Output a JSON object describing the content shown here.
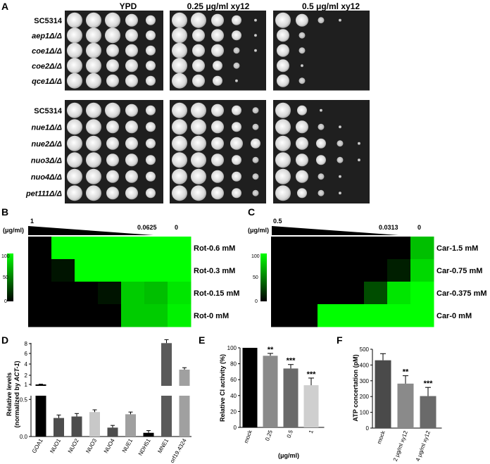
{
  "panel_letters": {
    "a": "A",
    "b": "B",
    "c": "C",
    "d": "D",
    "e": "E",
    "f": "F"
  },
  "panel_a": {
    "col_headers": [
      "YPD",
      "0.25 μg/ml  xy12",
      "0.5 μg/ml  xy12"
    ],
    "group1_strains": [
      "SC5314",
      "aep1Δ/Δ",
      "coe1Δ/Δ",
      "coe2Δ/Δ",
      "qce1Δ/Δ"
    ],
    "group2_strains": [
      "SC5314",
      "nue1Δ/Δ",
      "nue2Δ/Δ",
      "nuo3Δ/Δ",
      "nuo4Δ/Δ",
      "pet111Δ/Δ"
    ],
    "growth_group1": [
      [
        [
          5,
          5,
          5,
          4,
          3
        ],
        [
          5,
          5,
          4,
          3,
          1
        ],
        [
          5,
          4,
          2,
          1,
          0
        ]
      ],
      [
        [
          5,
          5,
          5,
          4,
          3
        ],
        [
          5,
          4,
          4,
          3,
          1
        ],
        [
          4,
          2,
          0,
          0,
          0
        ]
      ],
      [
        [
          5,
          5,
          4,
          4,
          3
        ],
        [
          5,
          4,
          4,
          2,
          1
        ],
        [
          4,
          2,
          0,
          0,
          0
        ]
      ],
      [
        [
          5,
          5,
          4,
          4,
          3
        ],
        [
          5,
          4,
          3,
          2,
          0
        ],
        [
          4,
          1,
          0,
          0,
          0
        ]
      ],
      [
        [
          5,
          5,
          4,
          4,
          3
        ],
        [
          5,
          4,
          3,
          1,
          0
        ],
        [
          4,
          2,
          0,
          0,
          0
        ]
      ]
    ],
    "growth_group2": [
      [
        [
          5,
          5,
          5,
          4,
          3
        ],
        [
          5,
          5,
          4,
          3,
          2
        ],
        [
          5,
          3,
          1,
          0,
          0
        ]
      ],
      [
        [
          5,
          5,
          4,
          4,
          3
        ],
        [
          5,
          5,
          4,
          3,
          2
        ],
        [
          5,
          4,
          2,
          1,
          0
        ]
      ],
      [
        [
          5,
          5,
          4,
          4,
          3
        ],
        [
          5,
          5,
          4,
          4,
          3
        ],
        [
          5,
          4,
          3,
          2,
          1
        ]
      ],
      [
        [
          5,
          5,
          4,
          4,
          3
        ],
        [
          5,
          5,
          4,
          3,
          2
        ],
        [
          5,
          4,
          3,
          2,
          1
        ]
      ],
      [
        [
          5,
          5,
          4,
          4,
          3
        ],
        [
          5,
          5,
          4,
          3,
          2
        ],
        [
          5,
          4,
          2,
          1,
          0
        ]
      ],
      [
        [
          5,
          5,
          4,
          4,
          3
        ],
        [
          5,
          5,
          4,
          3,
          2
        ],
        [
          5,
          3,
          2,
          1,
          0
        ]
      ]
    ]
  },
  "panel_b": {
    "conc_start": "1",
    "conc_mid": "0.0625",
    "conc_end": "0",
    "unit": "(μg/ml)",
    "rows": [
      "Rot-0.6 mM",
      "Rot-0.3 mM",
      "Rot-0.15 mM",
      "Rot-0 mM"
    ],
    "colorbar_ticks": [
      "100",
      "50",
      "0"
    ],
    "grid": [
      [
        0,
        100,
        100,
        100,
        100,
        100,
        100
      ],
      [
        0,
        8,
        100,
        100,
        100,
        100,
        100
      ],
      [
        0,
        0,
        0,
        8,
        80,
        75,
        90
      ],
      [
        0,
        0,
        0,
        0,
        80,
        80,
        95
      ]
    ]
  },
  "panel_c": {
    "conc_start": "0.5",
    "conc_mid": "0.0313",
    "conc_end": "0",
    "unit": "(μg/ml)",
    "rows": [
      "Car-1.5 mM",
      "Car-0.75 mM",
      "Car-0.375 mM",
      "Car-0 mM"
    ],
    "colorbar_ticks": [
      "100",
      "50",
      "0"
    ],
    "grid": [
      [
        0,
        0,
        0,
        0,
        0,
        0,
        75
      ],
      [
        0,
        0,
        0,
        0,
        0,
        12,
        85
      ],
      [
        0,
        0,
        0,
        0,
        30,
        90,
        100
      ],
      [
        0,
        0,
        100,
        100,
        100,
        100,
        100
      ]
    ]
  },
  "chart_data": [
    {
      "type": "bar",
      "panel": "D",
      "categories": [
        "GOA1",
        "NUO1",
        "NUO2",
        "NUO3",
        "NUO4",
        "NUE1",
        "NDH51",
        "MNE1",
        "orf19.4324"
      ],
      "values": [
        1.0,
        0.25,
        0.27,
        0.33,
        0.12,
        0.3,
        0.05,
        8.1,
        3.0
      ],
      "errors": [
        0.03,
        0.04,
        0.04,
        0.03,
        0.03,
        0.03,
        0.03,
        0.7,
        0.35
      ],
      "colors": [
        "#000000",
        "#4d4d4d",
        "#4d4d4d",
        "#c8c8c8",
        "#4d4d4d",
        "#a0a0a0",
        "#000000",
        "#5a5a5a",
        "#a0a0a0"
      ],
      "ylabel": "Relative levels",
      "ylabel2": "(normalized by ACT-1)",
      "ylabel2_plain": "(normalized by ",
      "ylabel2_italic": "ACT-1",
      "ylabel2_close": ")",
      "y_ticks_lower": [
        "0.0",
        "0.5"
      ],
      "y_ticks_upper": [
        "1",
        "2",
        "4",
        "6",
        "8"
      ],
      "axis_break": [
        0.55,
        0.9
      ]
    },
    {
      "type": "bar",
      "panel": "E",
      "categories": [
        "mock",
        "0.25",
        "0.5",
        "1"
      ],
      "values": [
        100,
        90,
        74,
        53
      ],
      "errors": [
        0,
        3,
        5,
        9
      ],
      "significance": [
        "",
        "**",
        "***",
        "***"
      ],
      "colors": [
        "#000000",
        "#8a8a8a",
        "#6a6a6a",
        "#cfcfcf"
      ],
      "ylabel": "Relative CI activity (%)",
      "xlabel": "(μg/ml)",
      "ylim": [
        0,
        100
      ],
      "y_ticks": [
        "0",
        "20",
        "40",
        "60",
        "80",
        "100"
      ]
    },
    {
      "type": "bar",
      "panel": "F",
      "categories": [
        "mock",
        "2 μg/ml xy12",
        "4 μg/ml xy12"
      ],
      "values": [
        430,
        282,
        203
      ],
      "errors": [
        42,
        50,
        55
      ],
      "significance": [
        "",
        "**",
        "***"
      ],
      "colors": [
        "#4a4a4a",
        "#8a8a8a",
        "#6a6a6a"
      ],
      "ylabel": "ATP concertation (pM)",
      "ylim": [
        0,
        500
      ],
      "y_ticks": [
        "0",
        "100",
        "200",
        "300",
        "400",
        "500"
      ]
    }
  ]
}
